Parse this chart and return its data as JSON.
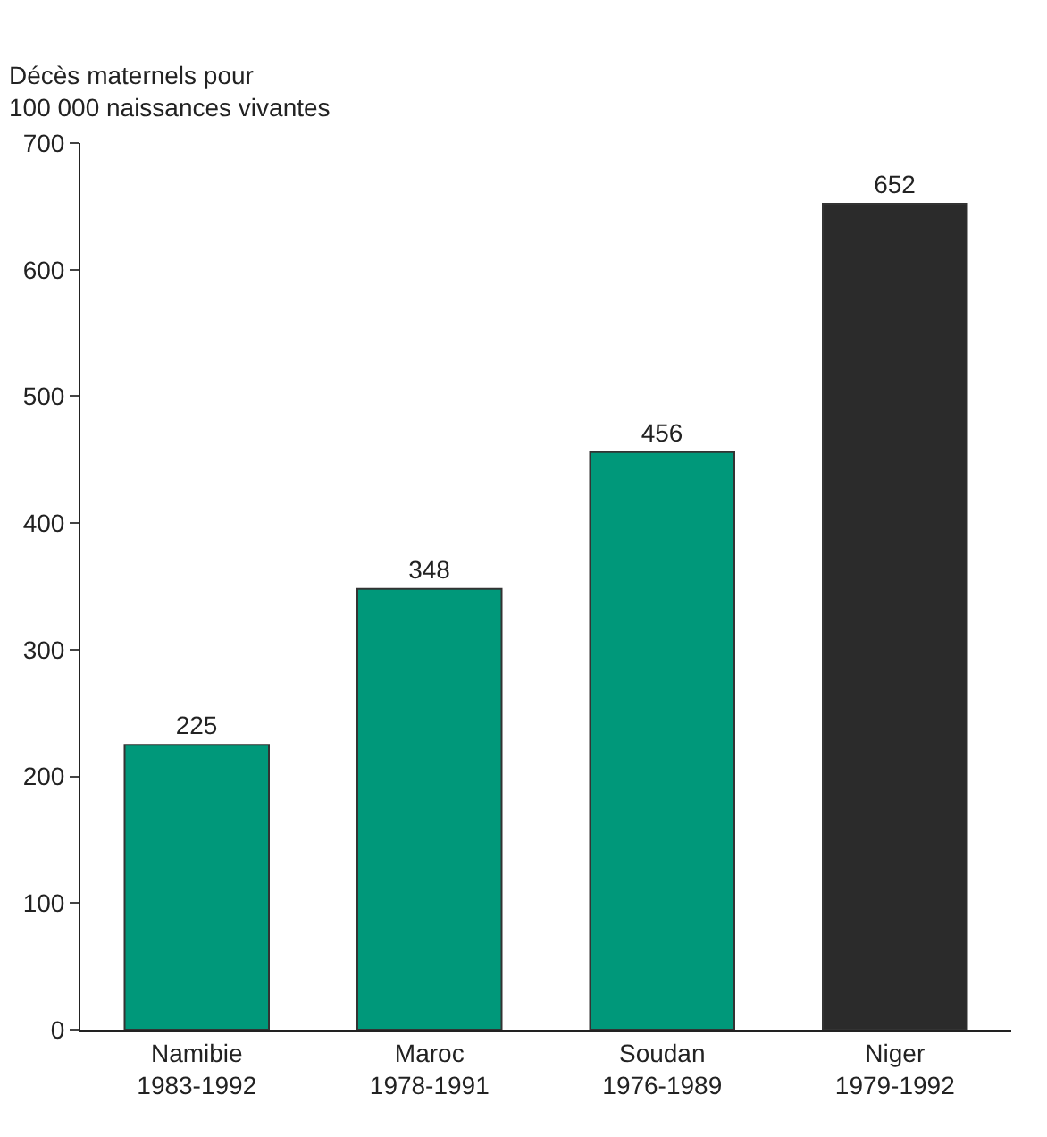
{
  "chart_data": {
    "type": "bar",
    "ylabel": "Décès maternels pour\n100 000 naissances vivantes",
    "categories": [
      "Namibie\n1983-1992",
      "Maroc\n1978-1991",
      "Soudan\n1976-1989",
      "Niger\n1979-1992"
    ],
    "values": [
      225,
      348,
      456,
      652
    ],
    "colors": [
      "#00987a",
      "#00987a",
      "#00987a",
      "#2b2b2b"
    ],
    "ylim": [
      0,
      700
    ],
    "yticks": [
      0,
      100,
      200,
      300,
      400,
      500,
      600,
      700
    ],
    "data_labels": true,
    "grid": false,
    "legend": false
  }
}
